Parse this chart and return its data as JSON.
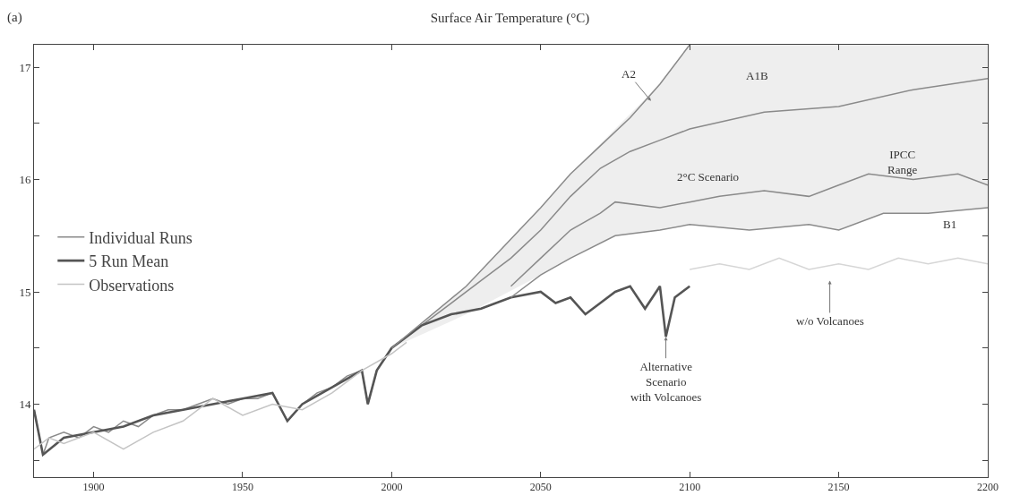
{
  "chart_data": {
    "type": "line",
    "title": "Surface Air Temperature (°C)",
    "xlim": [
      1880,
      2200
    ],
    "xticks": [
      1900,
      1950,
      2000,
      2050,
      2100,
      2150,
      2200
    ],
    "ylim": [
      13.35,
      17.2
    ],
    "yticks": [
      {
        "value": 13.5,
        "label": null
      },
      14,
      {
        "value": 14.5,
        "label": null
      },
      15,
      {
        "value": 15.5,
        "label": null
      },
      16,
      {
        "value": 16.5,
        "label": null
      },
      17
    ],
    "legend": "left",
    "marker": "none",
    "line_style": "solid",
    "series": [
      {
        "color": "#eeeeee",
        "x": [
          2000,
          2025,
          2050,
          2060,
          2075,
          2090,
          2100,
          2120,
          2140,
          2150,
          2165,
          2180,
          2200
        ],
        "values": [
          null,
          null,
          null,
          null,
          null,
          null,
          null,
          null,
          null,
          null,
          null,
          null,
          null
        ],
        "lower": [
          14.5,
          14.8,
          15.15,
          15.3,
          15.5,
          15.55,
          15.6,
          15.55,
          15.6,
          15.55,
          15.7,
          15.7,
          15.75
        ],
        "upper": [
          14.5,
          15.05,
          15.75,
          16.05,
          16.45,
          16.85,
          17.2,
          17.2,
          17.2,
          17.2,
          17.2,
          17.2,
          17.2
        ]
      },
      {
        "name": "Individual Runs",
        "color": "#8a8a8a",
        "x": [
          1880,
          1883,
          1885,
          1890,
          1895,
          1900,
          1905,
          1910,
          1915,
          1920,
          1925,
          1930,
          1935,
          1940,
          1945,
          1950,
          1955,
          1960,
          1965,
          1970,
          1975,
          1980,
          1985,
          1990,
          1992,
          1995,
          2000,
          2010,
          2020,
          2030,
          2040,
          2050,
          2060,
          2070,
          2080,
          2090,
          2100,
          2125,
          2150,
          2175,
          2200
        ],
        "values": [
          13.95,
          13.55,
          13.7,
          13.75,
          13.7,
          13.8,
          13.75,
          13.85,
          13.8,
          13.9,
          13.95,
          13.95,
          14.0,
          14.05,
          14.0,
          14.05,
          14.05,
          14.1,
          13.85,
          14.0,
          14.1,
          14.15,
          14.25,
          14.3,
          14.0,
          14.3,
          14.5,
          14.7,
          14.9,
          15.1,
          15.3,
          15.55,
          15.85,
          16.1,
          16.25,
          16.35,
          16.45,
          16.6,
          16.65,
          16.8,
          16.9
        ]
      },
      {
        "name": "5 Run Mean",
        "color": "#555555",
        "x": [
          1880,
          1883,
          1890,
          1900,
          1910,
          1920,
          1930,
          1940,
          1950,
          1960,
          1965,
          1970,
          1980,
          1990,
          1992,
          1995,
          2000,
          2005,
          2010,
          2020,
          2030,
          2040,
          2050,
          2055,
          2060,
          2065,
          2070,
          2075,
          2080,
          2085,
          2090,
          2092,
          2095,
          2100
        ],
        "values": [
          13.95,
          13.55,
          13.7,
          13.75,
          13.8,
          13.9,
          13.95,
          14.0,
          14.05,
          14.1,
          13.85,
          14.0,
          14.15,
          14.3,
          14.0,
          14.3,
          14.5,
          14.6,
          14.7,
          14.8,
          14.85,
          14.95,
          15.0,
          14.9,
          14.95,
          14.8,
          14.9,
          15.0,
          15.05,
          14.85,
          15.05,
          14.6,
          14.95,
          15.05
        ]
      },
      {
        "name": "Observations",
        "color": "#c4c4c4",
        "x": [
          1880,
          1885,
          1890,
          1900,
          1910,
          1920,
          1930,
          1940,
          1950,
          1960,
          1970,
          1980,
          1990,
          2000,
          2005
        ],
        "values": [
          13.6,
          13.7,
          13.65,
          13.75,
          13.6,
          13.75,
          13.85,
          14.05,
          13.9,
          14.0,
          13.95,
          14.1,
          14.3,
          14.45,
          14.55
        ]
      },
      {
        "color": "#8a8a8a",
        "x": [
          2000,
          2025,
          2050,
          2060,
          2070,
          2080,
          2090,
          2100
        ],
        "values": [
          14.5,
          15.05,
          15.75,
          16.05,
          16.3,
          16.55,
          16.85,
          17.2
        ]
      },
      {
        "color": "#8a8a8a",
        "x": [
          2040,
          2050,
          2060,
          2070,
          2075,
          2090,
          2100,
          2110,
          2125,
          2140,
          2150,
          2160,
          2175,
          2190,
          2200
        ],
        "values": [
          15.05,
          15.3,
          15.55,
          15.7,
          15.8,
          15.75,
          15.8,
          15.85,
          15.9,
          15.85,
          15.95,
          16.05,
          16.0,
          16.05,
          15.95
        ]
      },
      {
        "color": "#8a8a8a",
        "x": [
          2040,
          2050,
          2060,
          2075,
          2090,
          2100,
          2120,
          2140,
          2150,
          2165,
          2180,
          2200
        ],
        "values": [
          14.95,
          15.15,
          15.3,
          15.5,
          15.55,
          15.6,
          15.55,
          15.6,
          15.55,
          15.7,
          15.7,
          15.75
        ]
      },
      {
        "color": "#d6d6d6",
        "x": [
          2100,
          2110,
          2120,
          2130,
          2140,
          2150,
          2160,
          2170,
          2180,
          2190,
          2200
        ],
        "values": [
          15.2,
          15.25,
          15.2,
          15.3,
          15.2,
          15.25,
          15.2,
          15.3,
          15.25,
          15.3,
          15.25
        ]
      }
    ],
    "annotations": [
      "(a)",
      {
        "text": "A2",
        "x": 2087,
        "y": 16.7
      },
      "A1B",
      "IPCC\nRange",
      "2°C Scenario",
      "B1",
      {
        "text": "Alternative\nScenario\nwith Volcanoes",
        "x": 2092,
        "y": 14.6
      },
      {
        "text": "w/o Volcanoes",
        "x": 2147,
        "y": 15.1
      }
    ]
  }
}
